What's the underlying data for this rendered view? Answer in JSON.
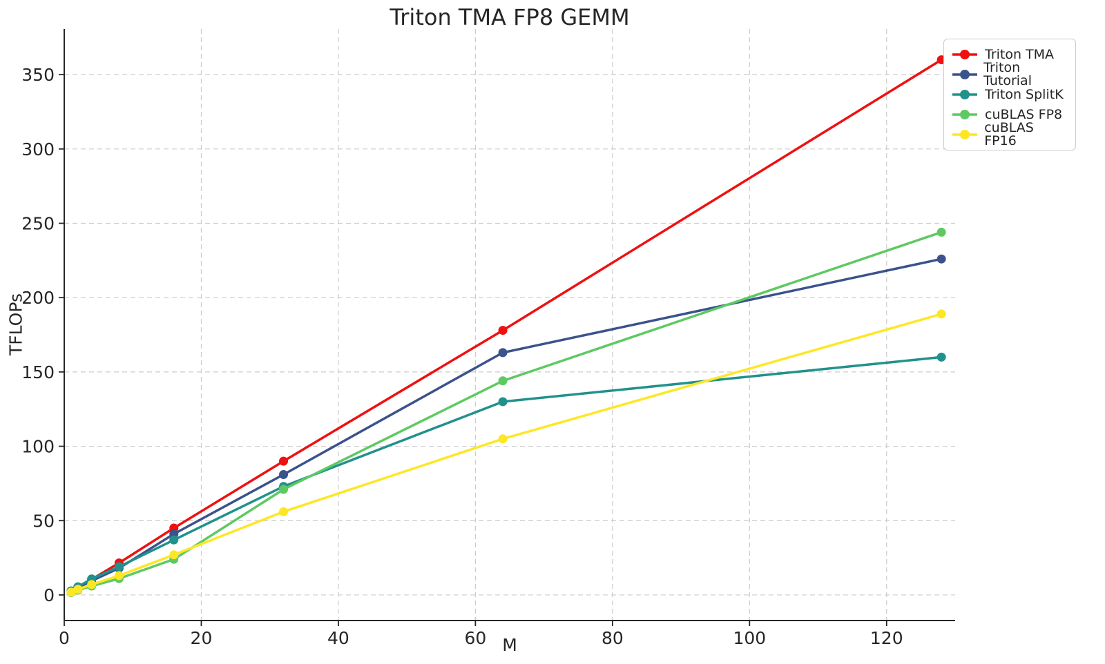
{
  "figure": {
    "kind": "matplotlib-style line chart"
  },
  "chart_data": {
    "type": "line",
    "title": "Triton TMA FP8 GEMM",
    "xlabel": "M",
    "ylabel": "TFLOPs",
    "x": [
      1,
      2,
      4,
      8,
      16,
      32,
      64,
      128
    ],
    "series": [
      {
        "name": "Triton TMA",
        "color": "#ee1111",
        "values": [
          2.6,
          5.3,
          10.5,
          21.5,
          45,
          90,
          178,
          360
        ]
      },
      {
        "name": "Triton Tutorial",
        "color": "#3b528b",
        "values": [
          2.4,
          4.8,
          9.5,
          18,
          41,
          81,
          163,
          226
        ]
      },
      {
        "name": "Triton SplitK",
        "color": "#21918c",
        "values": [
          2.7,
          5.5,
          10.8,
          19,
          37,
          73,
          130,
          160
        ]
      },
      {
        "name": "cuBLAS FP8",
        "color": "#5ec962",
        "values": [
          1.6,
          3.2,
          6.0,
          11,
          24,
          71,
          144,
          244
        ]
      },
      {
        "name": "cuBLAS FP16",
        "color": "#fde725",
        "values": [
          1.9,
          3.8,
          7.0,
          13,
          27,
          56,
          105,
          189
        ]
      }
    ],
    "xticks": [
      0,
      20,
      40,
      60,
      80,
      100,
      120
    ],
    "yticks": [
      0,
      50,
      100,
      150,
      200,
      250,
      300,
      350
    ],
    "xlim": [
      0,
      130
    ],
    "ylim": [
      -17.2,
      380.7
    ],
    "grid": true,
    "grid_style": "dashed",
    "legend_position": "outside upper right",
    "marker": "circle",
    "spine_color": "#262626"
  }
}
